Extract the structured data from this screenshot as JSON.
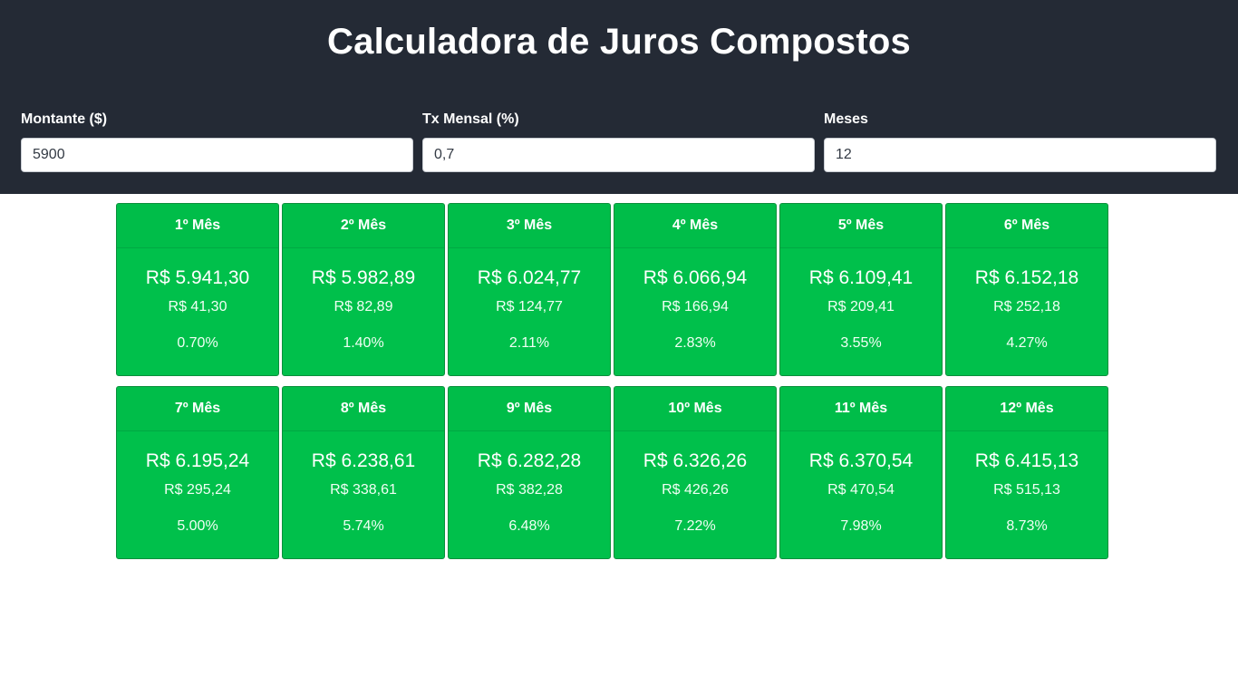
{
  "header": {
    "title": "Calculadora de Juros Compostos"
  },
  "form": {
    "amount": {
      "label": "Montante ($)",
      "value": "5900"
    },
    "rate": {
      "label": "Tx Mensal (%)",
      "value": "0,7"
    },
    "months": {
      "label": "Meses",
      "value": "12"
    }
  },
  "results": [
    {
      "month": "1º Mês",
      "total": "R$ 5.941,30",
      "interest": "R$ 41,30",
      "percent": "0.70%"
    },
    {
      "month": "2º Mês",
      "total": "R$ 5.982,89",
      "interest": "R$ 82,89",
      "percent": "1.40%"
    },
    {
      "month": "3º Mês",
      "total": "R$ 6.024,77",
      "interest": "R$ 124,77",
      "percent": "2.11%"
    },
    {
      "month": "4º Mês",
      "total": "R$ 6.066,94",
      "interest": "R$ 166,94",
      "percent": "2.83%"
    },
    {
      "month": "5º Mês",
      "total": "R$ 6.109,41",
      "interest": "R$ 209,41",
      "percent": "3.55%"
    },
    {
      "month": "6º Mês",
      "total": "R$ 6.152,18",
      "interest": "R$ 252,18",
      "percent": "4.27%"
    },
    {
      "month": "7º Mês",
      "total": "R$ 6.195,24",
      "interest": "R$ 295,24",
      "percent": "5.00%"
    },
    {
      "month": "8º Mês",
      "total": "R$ 6.238,61",
      "interest": "R$ 338,61",
      "percent": "5.74%"
    },
    {
      "month": "9º Mês",
      "total": "R$ 6.282,28",
      "interest": "R$ 382,28",
      "percent": "6.48%"
    },
    {
      "month": "10º Mês",
      "total": "R$ 6.326,26",
      "interest": "R$ 426,26",
      "percent": "7.22%"
    },
    {
      "month": "11º Mês",
      "total": "R$ 6.370,54",
      "interest": "R$ 470,54",
      "percent": "7.98%"
    },
    {
      "month": "12º Mês",
      "total": "R$ 6.415,13",
      "interest": "R$ 515,13",
      "percent": "8.73%"
    }
  ],
  "colors": {
    "header_bg": "#242a35",
    "card_bg": "#00c04b",
    "card_border": "#0a8f3c"
  }
}
